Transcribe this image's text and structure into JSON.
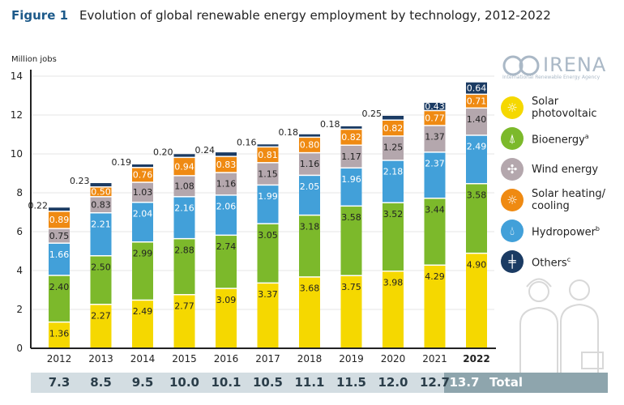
{
  "header": {
    "figure_label": "Figure 1",
    "title": "Evolution of global renewable energy employment by technology, 2012-2022"
  },
  "logo": {
    "name": "IRENA",
    "subtitle": "International Renewable Energy Agency"
  },
  "chart_data": {
    "type": "bar",
    "stacked": true,
    "ylabel": "Million jobs",
    "ylim": [
      0,
      14
    ],
    "yticks": [
      0,
      2,
      4,
      6,
      8,
      10,
      12,
      14
    ],
    "grid": true,
    "legend_position": "right",
    "categories": [
      "2012",
      "2013",
      "2014",
      "2015",
      "2016",
      "2017",
      "2018",
      "2019",
      "2020",
      "2021",
      "2022"
    ],
    "series": [
      {
        "name": "Solar photovoltaic",
        "color": "#f5d800",
        "values": [
          1.36,
          2.27,
          2.49,
          2.77,
          3.09,
          3.37,
          3.68,
          3.75,
          3.98,
          4.29,
          4.9
        ]
      },
      {
        "name": "Bioenergy",
        "sup": "a",
        "color": "#7cb92b",
        "values": [
          2.4,
          2.5,
          2.99,
          2.88,
          2.74,
          3.05,
          3.18,
          3.58,
          3.52,
          3.44,
          3.58
        ]
      },
      {
        "name": "Hydropower",
        "sup": "b",
        "color": "#42a0d9",
        "values": [
          1.66,
          2.21,
          2.04,
          2.16,
          2.06,
          1.99,
          2.05,
          1.96,
          2.18,
          2.37,
          2.49
        ]
      },
      {
        "name": "Wind energy",
        "color": "#b4a7ad",
        "values": [
          0.75,
          0.83,
          1.03,
          1.08,
          1.16,
          1.15,
          1.16,
          1.17,
          1.25,
          1.37,
          1.4
        ]
      },
      {
        "name": "Solar heating/ cooling",
        "color": "#ef8a12",
        "values": [
          0.89,
          0.5,
          0.76,
          0.94,
          0.83,
          0.81,
          0.8,
          0.82,
          0.82,
          0.77,
          0.71
        ]
      },
      {
        "name": "Others",
        "sup": "c",
        "color": "#1b3b63",
        "values": [
          0.22,
          0.23,
          0.19,
          0.2,
          0.24,
          0.16,
          0.18,
          0.18,
          0.25,
          0.43,
          0.64
        ]
      }
    ],
    "totals": [
      "7.3",
      "8.5",
      "9.5",
      "10.0",
      "10.1",
      "10.5",
      "11.1",
      "11.5",
      "12.0",
      "12.7",
      "13.7"
    ],
    "totals_label": "Total"
  }
}
